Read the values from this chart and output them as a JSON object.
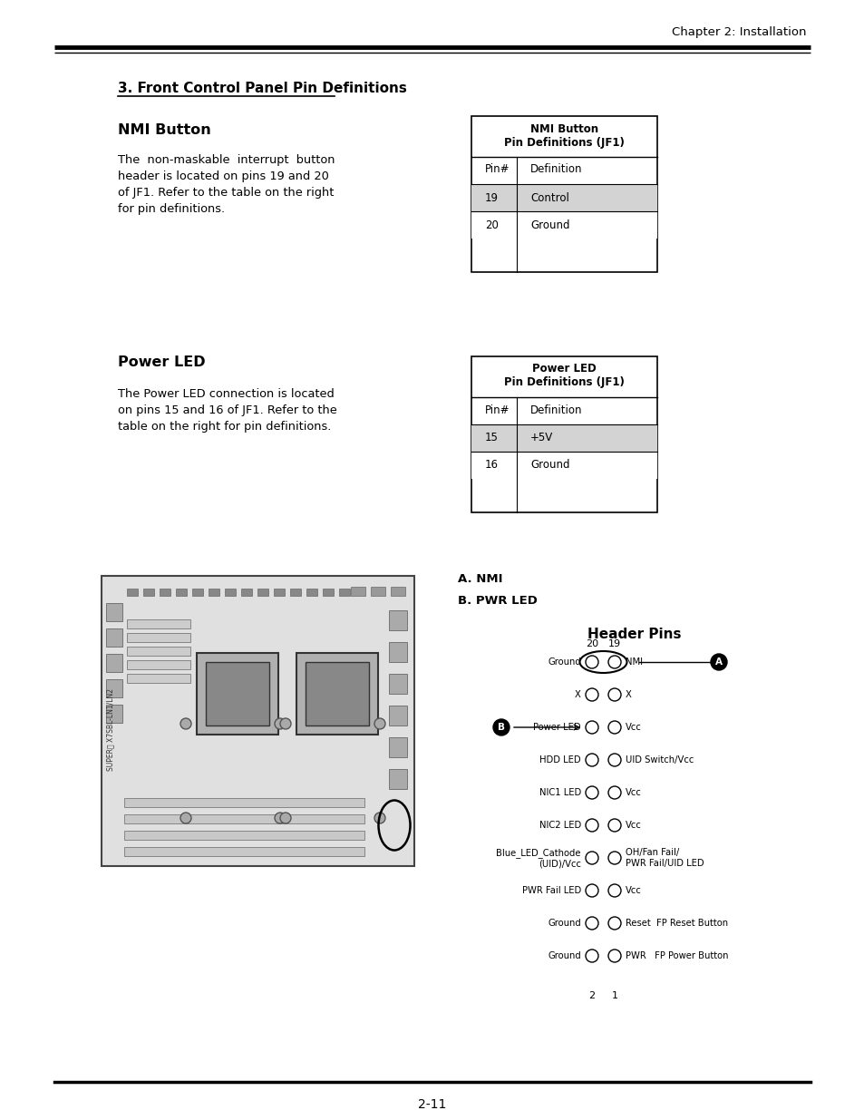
{
  "bg_color": "#ffffff",
  "chapter_header": "Chapter 2: Installation",
  "page_number": "2-11",
  "section_title": "3. Front Control Panel Pin Definitions",
  "nmi_section": {
    "heading": "NMI Button",
    "body_lines": [
      "The  non-maskable  interrupt  button",
      "header is located on pins 19 and 20",
      "of JF1. Refer to the table on the right",
      "for pin definitions."
    ],
    "table_title1": "NMI Button",
    "table_title2": "Pin Definitions (JF1)",
    "table_header": [
      "Pin#",
      "Definition"
    ],
    "table_rows": [
      [
        "19",
        "Control"
      ],
      [
        "20",
        "Ground"
      ]
    ],
    "row_colors": [
      "#d3d3d3",
      "#ffffff"
    ]
  },
  "power_led_section": {
    "heading": "Power LED",
    "body_lines": [
      "The Power LED connection is located",
      "on pins 15 and 16 of JF1. Refer to the",
      "table on the right for pin definitions."
    ],
    "table_title1": "Power LED",
    "table_title2": "Pin Definitions (JF1)",
    "table_header": [
      "Pin#",
      "Definition"
    ],
    "table_rows": [
      [
        "15",
        "+5V"
      ],
      [
        "16",
        "Ground"
      ]
    ],
    "row_colors": [
      "#d3d3d3",
      "#ffffff"
    ]
  },
  "diagram_section": {
    "label_a": "A. NMI",
    "label_b": "B. PWR LED",
    "header_pins_title": "Header Pins",
    "col_labels_top": [
      "20",
      "19"
    ],
    "row_labels_left": [
      "Ground",
      "X",
      "Power LED",
      "HDD LED",
      "NIC1 LED",
      "NIC2 LED",
      "Blue_LED_Cathode\n(UID)/Vcc",
      "PWR Fail LED",
      "Ground",
      "Ground"
    ],
    "row_labels_right": [
      "NMI",
      "X",
      "Vcc",
      "UID Switch/Vcc",
      "Vcc",
      "Vcc",
      "OH/Fan Fail/\nPWR Fail/UID LED",
      "Vcc",
      "Reset  FP Reset Button",
      "PWR   FP Power Button"
    ],
    "col_labels_bottom": [
      "2",
      "1"
    ]
  }
}
